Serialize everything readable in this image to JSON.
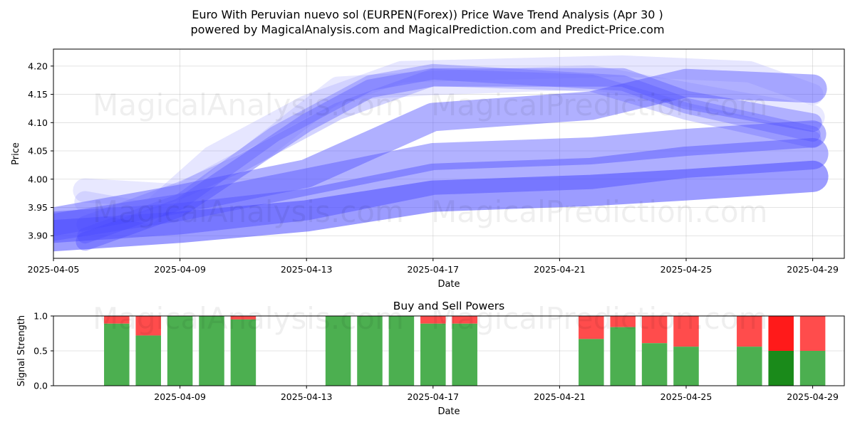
{
  "title_line1": "Euro With Peruvian nuevo sol (EURPEN(Forex)) Price Wave Trend Analysis (Apr 30 )",
  "title_line2": "powered by MagicalAnalysis.com and MagicalPrediction.com and Predict-Price.com",
  "watermarks": [
    "MagicalAnalysis.com",
    "MagicalPrediction.com"
  ],
  "chart_data": [
    {
      "type": "area",
      "title": "",
      "xlabel": "Date",
      "ylabel": "Price",
      "ylim": [
        3.86,
        4.23
      ],
      "xlim": [
        "2025-04-05",
        "2025-04-30"
      ],
      "x_ticks": [
        "2025-04-05",
        "2025-04-09",
        "2025-04-13",
        "2025-04-17",
        "2025-04-21",
        "2025-04-25",
        "2025-04-29"
      ],
      "y_ticks": [
        "3.90",
        "3.95",
        "4.00",
        "4.05",
        "4.10",
        "4.15",
        "4.20"
      ],
      "grid": true,
      "bands": [
        {
          "x": [
            "2025-04-05",
            "2025-04-09",
            "2025-04-13",
            "2025-04-17",
            "2025-04-22",
            "2025-04-25",
            "2025-04-29"
          ],
          "y": [
            3.915,
            3.93,
            3.955,
            4.0,
            4.01,
            4.03,
            4.045
          ],
          "color": "#6b6bff",
          "alpha": 0.55
        },
        {
          "x": [
            "2025-04-05",
            "2025-04-09",
            "2025-04-13",
            "2025-04-17",
            "2025-04-22",
            "2025-04-25",
            "2025-04-29"
          ],
          "y": [
            3.9,
            3.915,
            3.935,
            3.97,
            3.98,
            3.99,
            4.005
          ],
          "color": "#4a4aff",
          "alpha": 0.55
        },
        {
          "x": [
            "2025-04-05",
            "2025-04-09",
            "2025-04-13",
            "2025-04-17",
            "2025-04-22",
            "2025-04-25",
            "2025-04-29"
          ],
          "y": [
            3.925,
            3.965,
            4.01,
            4.11,
            4.13,
            4.17,
            4.16
          ],
          "color": "#4f4fff",
          "alpha": 0.45
        },
        {
          "x": [
            "2025-04-05",
            "2025-04-09",
            "2025-04-13",
            "2025-04-17",
            "2025-04-22",
            "2025-04-25",
            "2025-04-29"
          ],
          "y": [
            3.915,
            3.95,
            3.995,
            4.04,
            4.05,
            4.065,
            4.08
          ],
          "color": "#5555ff",
          "alpha": 0.45
        },
        {
          "x": [
            "2025-04-06",
            "2025-04-09",
            "2025-04-13",
            "2025-04-15",
            "2025-04-17",
            "2025-04-23",
            "2025-04-25",
            "2025-04-29"
          ],
          "y": [
            3.89,
            3.95,
            4.1,
            4.16,
            4.18,
            4.18,
            4.14,
            4.1
          ],
          "color": "#4444ff",
          "alpha": 0.35
        },
        {
          "x": [
            "2025-04-06",
            "2025-04-09",
            "2025-04-12",
            "2025-04-15",
            "2025-04-17",
            "2025-04-23",
            "2025-04-25",
            "2025-04-29"
          ],
          "y": [
            3.9,
            3.96,
            4.08,
            4.17,
            4.19,
            4.17,
            4.13,
            4.08
          ],
          "color": "#4444ff",
          "alpha": 0.3
        },
        {
          "x": [
            "2025-04-06",
            "2025-04-09",
            "2025-04-11",
            "2025-04-14",
            "2025-04-17",
            "2025-04-22",
            "2025-04-25",
            "2025-04-29"
          ],
          "y": [
            3.92,
            3.98,
            4.03,
            4.12,
            4.18,
            4.17,
            4.12,
            4.07
          ],
          "color": "#5050ff",
          "alpha": 0.25
        },
        {
          "x": [
            "2025-04-06",
            "2025-04-08",
            "2025-04-10",
            "2025-04-13",
            "2025-04-16",
            "2025-04-23",
            "2025-04-27",
            "2025-04-29"
          ],
          "y": [
            3.96,
            3.94,
            4.04,
            4.13,
            4.19,
            4.2,
            4.19,
            4.15
          ],
          "color": "#7777ff",
          "alpha": 0.18
        },
        {
          "x": [
            "2025-04-06",
            "2025-04-09",
            "2025-04-11",
            "2025-04-14",
            "2025-04-17",
            "2025-04-22",
            "2025-04-26",
            "2025-04-29"
          ],
          "y": [
            3.98,
            3.97,
            4.03,
            4.16,
            4.17,
            4.18,
            4.14,
            4.11
          ],
          "color": "#6666ff",
          "alpha": 0.15
        }
      ]
    },
    {
      "type": "bar",
      "title": "Buy and Sell Powers",
      "xlabel": "Date",
      "ylabel": "Signal Strength",
      "ylim": [
        0,
        1
      ],
      "xlim": [
        "2025-04-05",
        "2025-04-30"
      ],
      "x_ticks": [
        "2025-04-09",
        "2025-04-13",
        "2025-04-17",
        "2025-04-21",
        "2025-04-25",
        "2025-04-29"
      ],
      "y_ticks": [
        "0.0",
        "0.5",
        "1.0"
      ],
      "grid": true,
      "buy_color": "#4caf50",
      "sell_color": "#ff4c4c",
      "buy_color_strong": "#1a8a1a",
      "sell_color_strong": "#ff1a1a",
      "bars": [
        {
          "date": "2025-04-07",
          "buy": 0.89
        },
        {
          "date": "2025-04-08",
          "buy": 0.72
        },
        {
          "date": "2025-04-09",
          "buy": 1.0
        },
        {
          "date": "2025-04-10",
          "buy": 1.0
        },
        {
          "date": "2025-04-11",
          "buy": 0.95
        },
        {
          "date": "2025-04-14",
          "buy": 1.0
        },
        {
          "date": "2025-04-15",
          "buy": 1.0
        },
        {
          "date": "2025-04-16",
          "buy": 1.0
        },
        {
          "date": "2025-04-17",
          "buy": 0.89
        },
        {
          "date": "2025-04-18",
          "buy": 0.89
        },
        {
          "date": "2025-04-22",
          "buy": 0.67
        },
        {
          "date": "2025-04-23",
          "buy": 0.84
        },
        {
          "date": "2025-04-24",
          "buy": 0.61
        },
        {
          "date": "2025-04-25",
          "buy": 0.56
        },
        {
          "date": "2025-04-27",
          "buy": 0.56
        },
        {
          "date": "2025-04-28",
          "buy": 0.5,
          "strong": true
        },
        {
          "date": "2025-04-29",
          "buy": 0.5
        }
      ]
    }
  ]
}
